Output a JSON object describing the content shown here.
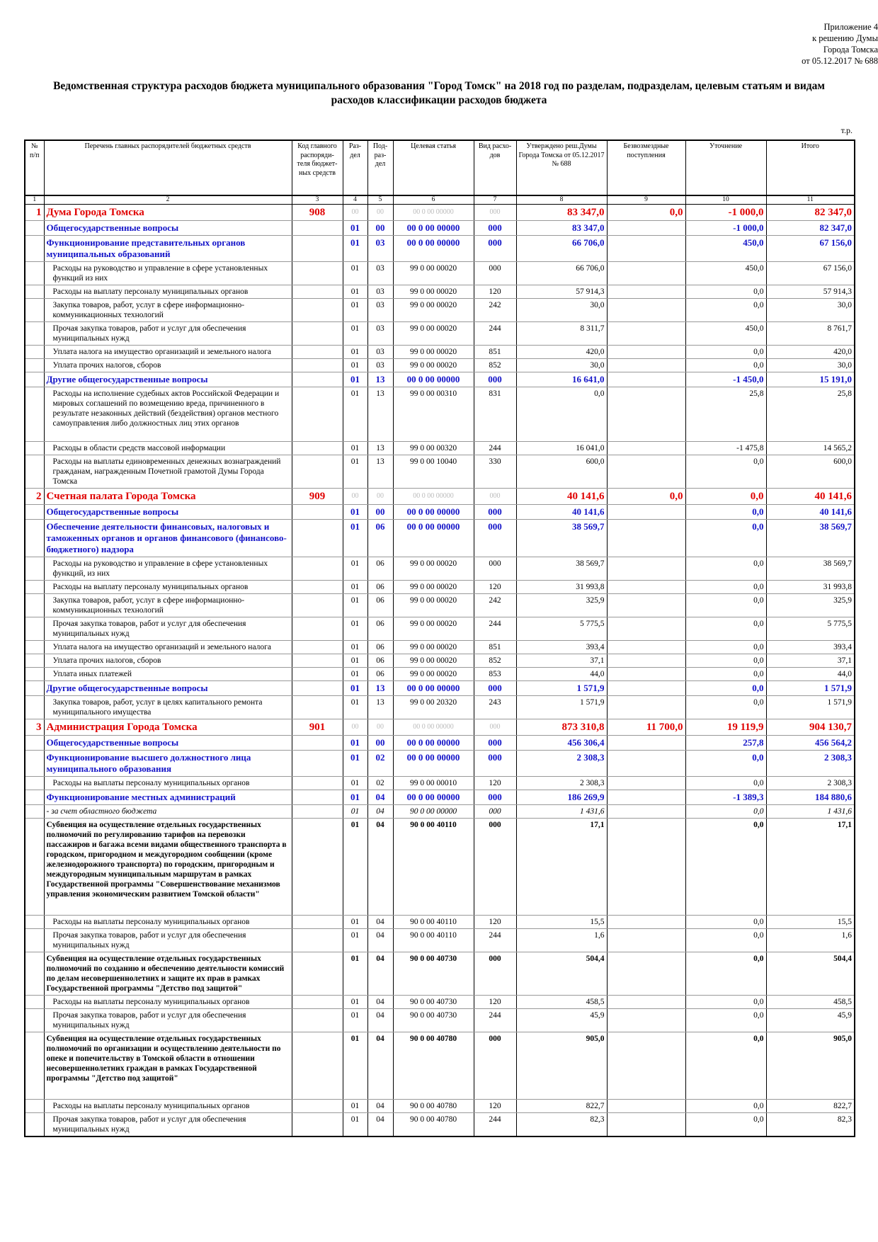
{
  "header": {
    "appendix": [
      "Приложение 4",
      "к решению Думы Города Томска",
      "от  05.12.2017 № 688"
    ],
    "title": "Ведомственная структура расходов бюджета муниципального образования \"Город Томск\" на 2018 год по разделам, подразделам, целевым статьям и видам расходов классификации расходов бюджета",
    "units": "т.р."
  },
  "table": {
    "columns": [
      "№ п/п",
      "Перечень главных распорядителей бюджетных средств",
      "Код главного распоряди-теля бюджет-ных средств",
      "Раз-дел",
      "Под-раз-дел",
      "Целевая статья",
      "Вид расхо-дов",
      "Утверждено реш.Думы Города Томска от 05.12.2017 № 688",
      "Безвозмездные поступления",
      "Уточнение",
      "Итого"
    ],
    "column_numbers": [
      "1",
      "2",
      "3",
      "4",
      "5",
      "6",
      "7",
      "8",
      "9",
      "10",
      "11"
    ],
    "rows": [
      {
        "style": "top",
        "cells": [
          "1",
          "Дума Города Томска",
          "908",
          "00",
          "00",
          "00 0 00 00000",
          "000",
          "83 347,0",
          "0,0",
          "-1 000,0",
          "82 347,0"
        ]
      },
      {
        "style": "sec",
        "cells": [
          null,
          "Общегосударственные вопросы",
          null,
          "01",
          "00",
          "00 0 00 00000",
          "000",
          "83 347,0",
          null,
          "-1 000,0",
          "82 347,0"
        ]
      },
      {
        "style": "sec",
        "cells": [
          null,
          "Функционирование представительных органов муниципальных образований",
          null,
          "01",
          "03",
          "00 0 00 00000",
          "000",
          "66 706,0",
          null,
          "450,0",
          "67 156,0"
        ]
      },
      {
        "style": "plain",
        "cells": [
          null,
          "Расходы на руководство и управление в сфере установленных функций из них",
          null,
          "01",
          "03",
          "99 0 00 00020",
          "000",
          "66 706,0",
          null,
          "450,0",
          "67 156,0"
        ]
      },
      {
        "style": "plain",
        "cells": [
          null,
          "Расходы на выплату персоналу муниципальных органов",
          null,
          "01",
          "03",
          "99 0 00 00020",
          "120",
          "57 914,3",
          null,
          "0,0",
          "57 914,3"
        ]
      },
      {
        "style": "plain",
        "cells": [
          null,
          "Закупка товаров, работ, услуг в сфере информационно-коммуникационных технологий",
          null,
          "01",
          "03",
          "99 0 00 00020",
          "242",
          "30,0",
          null,
          "0,0",
          "30,0"
        ]
      },
      {
        "style": "plain",
        "cells": [
          null,
          "Прочая закупка товаров, работ и услуг для обеспечения муниципальных нужд",
          null,
          "01",
          "03",
          "99 0 00 00020",
          "244",
          "8 311,7",
          null,
          "450,0",
          "8 761,7"
        ]
      },
      {
        "style": "plain",
        "cells": [
          null,
          "Уплата налога на имущество организаций и земельного налога",
          null,
          "01",
          "03",
          "99 0 00 00020",
          "851",
          "420,0",
          null,
          "0,0",
          "420,0"
        ]
      },
      {
        "style": "plain",
        "cells": [
          null,
          "Уплата прочих налогов, сборов",
          null,
          "01",
          "03",
          "99 0 00 00020",
          "852",
          "30,0",
          null,
          "0,0",
          "30,0"
        ]
      },
      {
        "style": "sec",
        "cells": [
          null,
          "Другие общегосударственные вопросы",
          null,
          "01",
          "13",
          "00 0 00 00000",
          "000",
          "16 641,0",
          null,
          "-1 450,0",
          "15 191,0"
        ]
      },
      {
        "style": "plain",
        "cells": [
          null,
          "Расходы на исполнение судебных актов Российской Федерации и мировых соглашений по возмещению вреда, причиненного в результате незаконных действий (бездействия) органов местного самоуправления либо должностных лиц этих органов",
          null,
          "01",
          "13",
          "99 0 00 00310",
          "831",
          "0,0",
          null,
          "25,8",
          "25,8"
        ]
      },
      {
        "style": "plain",
        "cells": [
          null,
          "Расходы в области средств массовой информации",
          null,
          "01",
          "13",
          "99 0 00 00320",
          "244",
          "16 041,0",
          null,
          "-1 475,8",
          "14 565,2"
        ]
      },
      {
        "style": "plain",
        "cells": [
          null,
          "Расходы на выплаты единовременных денежных вознаграждений гражданам, награжденным Почетной грамотой Думы Города Томска",
          null,
          "01",
          "13",
          "99 0 00 10040",
          "330",
          "600,0",
          null,
          "0,0",
          "600,0"
        ]
      },
      {
        "style": "top",
        "cells": [
          "2",
          "Счетная палата Города Томска",
          "909",
          "00",
          "00",
          "00 0 00 00000",
          "000",
          "40 141,6",
          "0,0",
          "0,0",
          "40 141,6"
        ]
      },
      {
        "style": "sec",
        "cells": [
          null,
          "Общегосударственные вопросы",
          null,
          "01",
          "00",
          "00 0 00 00000",
          "000",
          "40 141,6",
          null,
          "0,0",
          "40 141,6"
        ]
      },
      {
        "style": "sec",
        "cells": [
          null,
          "Обеспечение деятельности финансовых, налоговых и таможенных органов и органов финансового (финансово-бюджетного) надзора",
          null,
          "01",
          "06",
          "00 0 00 00000",
          "000",
          "38 569,7",
          null,
          "0,0",
          "38 569,7"
        ]
      },
      {
        "style": "plain",
        "cells": [
          null,
          "Расходы на руководство и управление в сфере установленных функций, из них",
          null,
          "01",
          "06",
          "99 0 00 00020",
          "000",
          "38 569,7",
          null,
          "0,0",
          "38 569,7"
        ]
      },
      {
        "style": "plain",
        "cells": [
          null,
          "Расходы на выплату персоналу муниципальных органов",
          null,
          "01",
          "06",
          "99 0 00 00020",
          "120",
          "31 993,8",
          null,
          "0,0",
          "31 993,8"
        ]
      },
      {
        "style": "plain",
        "cells": [
          null,
          "Закупка товаров, работ, услуг в сфере информационно-коммуникационных технологий",
          null,
          "01",
          "06",
          "99 0 00 00020",
          "242",
          "325,9",
          null,
          "0,0",
          "325,9"
        ]
      },
      {
        "style": "plain",
        "cells": [
          null,
          "Прочая закупка товаров, работ и услуг для обеспечения муниципальных нужд",
          null,
          "01",
          "06",
          "99 0 00 00020",
          "244",
          "5 775,5",
          null,
          "0,0",
          "5 775,5"
        ]
      },
      {
        "style": "plain",
        "cells": [
          null,
          "Уплата налога на имущество организаций и земельного налога",
          null,
          "01",
          "06",
          "99 0 00 00020",
          "851",
          "393,4",
          null,
          "0,0",
          "393,4"
        ]
      },
      {
        "style": "plain",
        "cells": [
          null,
          "Уплата прочих налогов, сборов",
          null,
          "01",
          "06",
          "99 0 00 00020",
          "852",
          "37,1",
          null,
          "0,0",
          "37,1"
        ]
      },
      {
        "style": "plain",
        "cells": [
          null,
          "Уплата иных платежей",
          null,
          "01",
          "06",
          "99 0 00 00020",
          "853",
          "44,0",
          null,
          "0,0",
          "44,0"
        ]
      },
      {
        "style": "sec",
        "cells": [
          null,
          "Другие общегосударственные вопросы",
          null,
          "01",
          "13",
          "00 0 00 00000",
          "000",
          "1 571,9",
          null,
          "0,0",
          "1 571,9"
        ]
      },
      {
        "style": "plain",
        "cells": [
          null,
          "Закупка товаров, работ, услуг в целях капитального ремонта муниципального имущества",
          null,
          "01",
          "13",
          "99 0 00 20320",
          "243",
          "1 571,9",
          null,
          "0,0",
          "1 571,9"
        ]
      },
      {
        "style": "top",
        "cells": [
          "3",
          "Администрация Города Томска",
          "901",
          "00",
          "00",
          "00 0 00 00000",
          "000",
          "873 310,8",
          "11 700,0",
          "19 119,9",
          "904 130,7"
        ]
      },
      {
        "style": "sec",
        "cells": [
          null,
          "Общегосударственные вопросы",
          null,
          "01",
          "00",
          "00 0 00 00000",
          "000",
          "456 306,4",
          null,
          "257,8",
          "456 564,2"
        ]
      },
      {
        "style": "sec",
        "cells": [
          null,
          "Функционирование высшего должностного лица муниципального образования",
          null,
          "01",
          "02",
          "00 0 00 00000",
          "000",
          "2 308,3",
          null,
          "0,0",
          "2 308,3"
        ]
      },
      {
        "style": "plain",
        "cells": [
          null,
          "Расходы на выплаты персоналу муниципальных органов",
          null,
          "01",
          "02",
          "99 0 00 00010",
          "120",
          "2 308,3",
          null,
          "0,0",
          "2 308,3"
        ]
      },
      {
        "style": "sec",
        "cells": [
          null,
          "Функционирование местных администраций",
          null,
          "01",
          "04",
          "00 0 00 00000",
          "000",
          "186 269,9",
          null,
          "-1 389,3",
          "184 880,6"
        ]
      },
      {
        "style": "italic",
        "cells": [
          null,
          "- за счет областного бюджета",
          null,
          "01",
          "04",
          "90 0 00 00000",
          "000",
          "1 431,6",
          null,
          "0,0",
          "1 431,6"
        ]
      },
      {
        "style": "bold",
        "cells": [
          null,
          "Субвенция на осуществление отдельных государственных полномочий по регулированию тарифов на перевозки пассажиров и багажа всеми видами общественного транспорта в городском, пригородном и междугородном сообщении (кроме железнодорожного транспорта) по городским, пригородным и междугородным муниципальным маршрутам в рамках Государственной программы \"Совершенствование механизмов управления экономическим развитием Томской области\"",
          null,
          "01",
          "04",
          "90 0 00 40110",
          "000",
          "17,1",
          null,
          "0,0",
          "17,1"
        ]
      },
      {
        "style": "plain",
        "cells": [
          null,
          "Расходы на выплаты персоналу муниципальных органов",
          null,
          "01",
          "04",
          "90 0 00 40110",
          "120",
          "15,5",
          null,
          "0,0",
          "15,5"
        ]
      },
      {
        "style": "plain",
        "cells": [
          null,
          "Прочая закупка товаров, работ и услуг для обеспечения муниципальных нужд",
          null,
          "01",
          "04",
          "90 0 00 40110",
          "244",
          "1,6",
          null,
          "0,0",
          "1,6"
        ]
      },
      {
        "style": "bold",
        "cells": [
          null,
          "Субвенция на осуществление отдельных государственных полномочий по созданию и обеспечению деятельности комиссий по делам несовершеннолетних и защите их прав в рамках Государственной программы \"Детство под защитой\"",
          null,
          "01",
          "04",
          "90 0 00 40730",
          "000",
          "504,4",
          null,
          "0,0",
          "504,4"
        ]
      },
      {
        "style": "plain",
        "cells": [
          null,
          "Расходы на выплаты персоналу муниципальных органов",
          null,
          "01",
          "04",
          "90 0 00 40730",
          "120",
          "458,5",
          null,
          "0,0",
          "458,5"
        ]
      },
      {
        "style": "plain",
        "cells": [
          null,
          "Прочая закупка товаров, работ и услуг для обеспечения муниципальных нужд",
          null,
          "01",
          "04",
          "90 0 00 40730",
          "244",
          "45,9",
          null,
          "0,0",
          "45,9"
        ]
      },
      {
        "style": "bold",
        "cells": [
          null,
          "Субвенция на осуществление отдельных государственных полномочий по организации и осуществлению деятельности по опеке и попечительству в Томской области в отношении несовершеннолетних граждан в рамках Государственной программы \"Детство под защитой\"",
          null,
          "01",
          "04",
          "90 0 00 40780",
          "000",
          "905,0",
          null,
          "0,0",
          "905,0"
        ]
      },
      {
        "style": "plain",
        "cells": [
          null,
          "Расходы на выплаты персоналу муниципальных органов",
          null,
          "01",
          "04",
          "90 0 00 40780",
          "120",
          "822,7",
          null,
          "0,0",
          "822,7"
        ]
      },
      {
        "style": "plain",
        "cells": [
          null,
          "Прочая закупка товаров, работ и услуг для обеспечения муниципальных нужд",
          null,
          "01",
          "04",
          "90 0 00 40780",
          "244",
          "82,3",
          null,
          "0,0",
          "82,3"
        ]
      }
    ]
  }
}
